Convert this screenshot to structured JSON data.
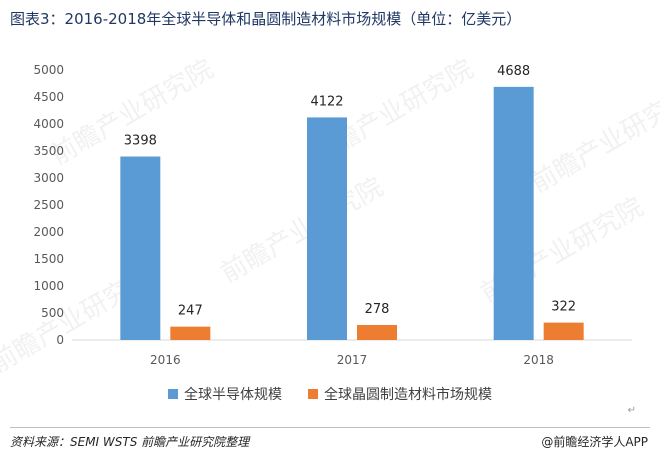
{
  "header": {
    "title": "图表3：2016-2018年全球半导体和晶圆制造材料市场规模（单位：亿美元）"
  },
  "watermark": "前瞻产业研究院",
  "chart_data": {
    "type": "bar",
    "categories": [
      "2016",
      "2017",
      "2018"
    ],
    "series": [
      {
        "name": "全球半导体规模",
        "values": [
          3398,
          4122,
          4688
        ],
        "color": "#5b9bd5"
      },
      {
        "name": "全球晶圆制造材料市场规模",
        "values": [
          247,
          278,
          322
        ],
        "color": "#ed7d31"
      }
    ],
    "ylim": [
      0,
      5000
    ],
    "yticks": [
      0,
      500,
      1000,
      1500,
      2000,
      2500,
      3000,
      3500,
      4000,
      4500,
      5000
    ],
    "grid": false,
    "legend": "bottom",
    "title": "",
    "xlabel": "",
    "ylabel": ""
  },
  "footer": {
    "source": "资料来源：SEMI WSTS 前瞻产业研究院整理",
    "brand": "@前瞻经济学人APP"
  }
}
